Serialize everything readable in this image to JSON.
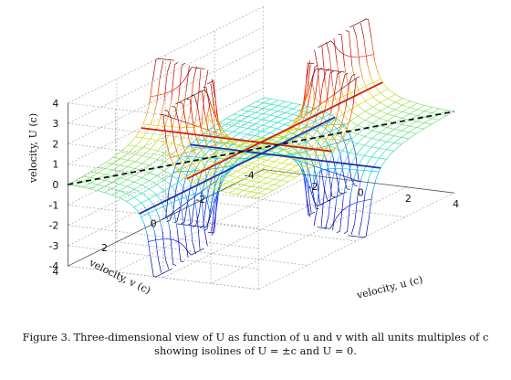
{
  "caption": {
    "lead": "Figure 3.",
    "text": "Three-dimensional view of U as function of u and v with all units multiples of c showing isolines of U = ±c and U = 0."
  },
  "chart_data": {
    "type": "surface3d",
    "title": "",
    "xlabel": "velocity, u (c)",
    "ylabel": "velocity, v (c)",
    "zlabel": "velocity, U (c)",
    "xlim": [
      -4,
      4
    ],
    "ylim": [
      -4,
      4
    ],
    "zlim": [
      -4,
      4
    ],
    "x_ticks": [
      "-2",
      "0",
      "2",
      "4"
    ],
    "y_ticks": [
      "-4",
      "-2",
      "0",
      "2",
      "4"
    ],
    "z_ticks": [
      "-4",
      "-3",
      "-2",
      "-1",
      "0",
      "1",
      "2",
      "3",
      "4"
    ],
    "grid": true,
    "surface": "U = c·tanh(atanh(u/c) + atanh(v/c))",
    "colormap": "jet",
    "isolines": [
      {
        "level": "U = +c",
        "color": "#d41b1b",
        "style": "solid"
      },
      {
        "level": "U = 0",
        "color": "#111111",
        "style": "dashed"
      },
      {
        "level": "U = -c",
        "color": "#2b2fa8",
        "style": "solid"
      }
    ]
  }
}
